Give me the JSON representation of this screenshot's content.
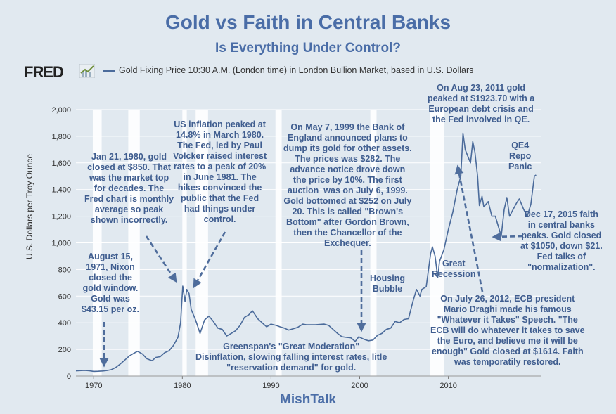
{
  "header": {
    "title": "Gold vs Faith in Central Banks",
    "subtitle": "Is Everything Under Control?",
    "brand": "FRED",
    "source": "MishTalk"
  },
  "colors": {
    "series": "#4b6b9b",
    "annotation": "#3f5d8f",
    "recession": "#ffffff",
    "plot_bg": "#e1e9f0"
  },
  "icons": {
    "brand": "fred-chart-icon"
  },
  "chart_data": {
    "type": "line",
    "title": "Gold vs Faith in Central Banks",
    "subtitle": "Is Everything Under Control?",
    "ylabel": "U.S. Dollars per Troy Ounce",
    "xlabel": "",
    "xlim": [
      1968,
      2020.5
    ],
    "ylim": [
      0,
      2000
    ],
    "grid": true,
    "legend": "top-left",
    "x_ticks": [
      "1970",
      "1980",
      "1990",
      "2000",
      "2010"
    ],
    "y_ticks": [
      "0",
      "200",
      "400",
      "600",
      "800",
      "1,000",
      "1,200",
      "1,400",
      "1,600",
      "1,800",
      "2,000"
    ],
    "recessions": [
      [
        1969.9,
        1970.9
      ],
      [
        1973.9,
        1975.2
      ],
      [
        1980.0,
        1980.5
      ],
      [
        1981.5,
        1982.9
      ],
      [
        1990.5,
        1991.2
      ],
      [
        2001.2,
        2001.9
      ],
      [
        2007.9,
        2009.5
      ]
    ],
    "series": [
      {
        "name": "Gold Fixing Price 10:30 A.M. (London time) in London Bullion Market, based in U.S. Dollars",
        "x": [
          1968.0,
          1969.0,
          1969.5,
          1970.0,
          1970.5,
          1971.0,
          1971.6,
          1972.0,
          1972.5,
          1973.0,
          1973.5,
          1974.0,
          1974.5,
          1974.95,
          1975.5,
          1976.0,
          1976.6,
          1977.0,
          1977.5,
          1978.0,
          1978.5,
          1979.0,
          1979.5,
          1979.8,
          1980.05,
          1980.3,
          1980.5,
          1980.75,
          1981.0,
          1981.5,
          1982.0,
          1982.5,
          1983.0,
          1983.5,
          1984.0,
          1984.5,
          1985.0,
          1985.5,
          1986.0,
          1986.5,
          1987.0,
          1987.5,
          1987.9,
          1988.5,
          1989.0,
          1989.5,
          1990.0,
          1990.6,
          1991.0,
          1991.5,
          1992.0,
          1993.0,
          1993.6,
          1994.0,
          1995.0,
          1996.0,
          1996.5,
          1997.0,
          1997.5,
          1998.0,
          1998.5,
          1999.0,
          1999.5,
          1999.9,
          2000.5,
          2001.0,
          2001.5,
          2002.0,
          2002.5,
          2003.0,
          2003.5,
          2004.0,
          2004.5,
          2005.0,
          2005.5,
          2006.0,
          2006.4,
          2006.8,
          2007.0,
          2007.5,
          2008.0,
          2008.2,
          2008.5,
          2008.8,
          2009.0,
          2009.5,
          2010.0,
          2010.5,
          2011.0,
          2011.4,
          2011.65,
          2011.9,
          2012.2,
          2012.5,
          2012.75,
          2013.0,
          2013.3,
          2013.5,
          2013.8,
          2014.0,
          2014.5,
          2014.9,
          2015.3,
          2015.96,
          2016.3,
          2016.6,
          2016.9,
          2017.3,
          2017.7,
          2018.0,
          2018.5,
          2018.9,
          2019.3,
          2019.7,
          2019.9
        ],
        "values": [
          39,
          42,
          40,
          35,
          36,
          38,
          43,
          48,
          65,
          90,
          120,
          150,
          170,
          186,
          165,
          130,
          115,
          140,
          145,
          175,
          190,
          230,
          290,
          400,
          675,
          560,
          650,
          620,
          500,
          420,
          320,
          420,
          450,
          410,
          360,
          350,
          300,
          320,
          340,
          380,
          440,
          460,
          490,
          430,
          400,
          370,
          390,
          380,
          370,
          360,
          345,
          365,
          390,
          385,
          385,
          390,
          380,
          350,
          320,
          295,
          290,
          287,
          260,
          295,
          275,
          265,
          270,
          305,
          320,
          350,
          360,
          410,
          400,
          425,
          430,
          560,
          650,
          600,
          650,
          670,
          920,
          970,
          900,
          740,
          860,
          950,
          1100,
          1230,
          1400,
          1500,
          1824,
          1700,
          1650,
          1600,
          1760,
          1680,
          1500,
          1280,
          1350,
          1270,
          1310,
          1200,
          1200,
          1050,
          1250,
          1340,
          1200,
          1250,
          1300,
          1330,
          1250,
          1200,
          1290,
          1500,
          1510
        ]
      }
    ],
    "annotations": [
      "Jan 21, 1980, gold\nclosed at $850. That\nwas the market top\nfor decades. The\nFred chart is monthly\naverage so peak\nshown incorrectly.",
      "US inflation peaked at\n14.8% in March 1980.\nThe Fed, led by Paul\nVolcker raised interest\nrates to a peak of 20%\nin June 1981. The\nhikes convinced the\npublic that the Fed\nhad things under\ncontrol.",
      "August 15,\n1971, Nixon\nclosed the\ngold window.\nGold was\n$43.15 per oz.",
      "On May 7, 1999 the Bank of\nEngland announced plans to\ndump its gold for other assets.\nThe prices was $282. The\nadvance notice drove down\nthe price by 10%. The first\nauction  was on July 6, 1999.\nGold bottomed at $252 on July\n20. This is called \"Brown's\nBottom\" after Gordon Brown,\nthen the Chancellor of the\nExchequer.",
      "On Aug 23, 2011 gold\npeaked at $1923.70 with a\nEuropean debt crisis and\nthe Fed involved in QE.",
      "QE4\nRepo\nPanic",
      "Dec 17, 2015 faith\nin central banks\npeaks. Gold closed\nat $1050, down $21.\nFed talks of\n\"normalization\".",
      "Housing\nBubble",
      "Great\nRecession",
      "On July 26, 2012, ECB president\nMario Draghi made his famous\n\"Whatever it Takes\" Speech. \"The\nECB will do whatever it takes to save\nthe Euro, and believe me it will be\nenough\" Gold closed at $1614. Faith\nwas temporatily restored.",
      "Greenspan's \"Great Moderation\"\nDisinflation, slowing falling interest rates, litle\n\"reservation demand\" for gold."
    ]
  }
}
